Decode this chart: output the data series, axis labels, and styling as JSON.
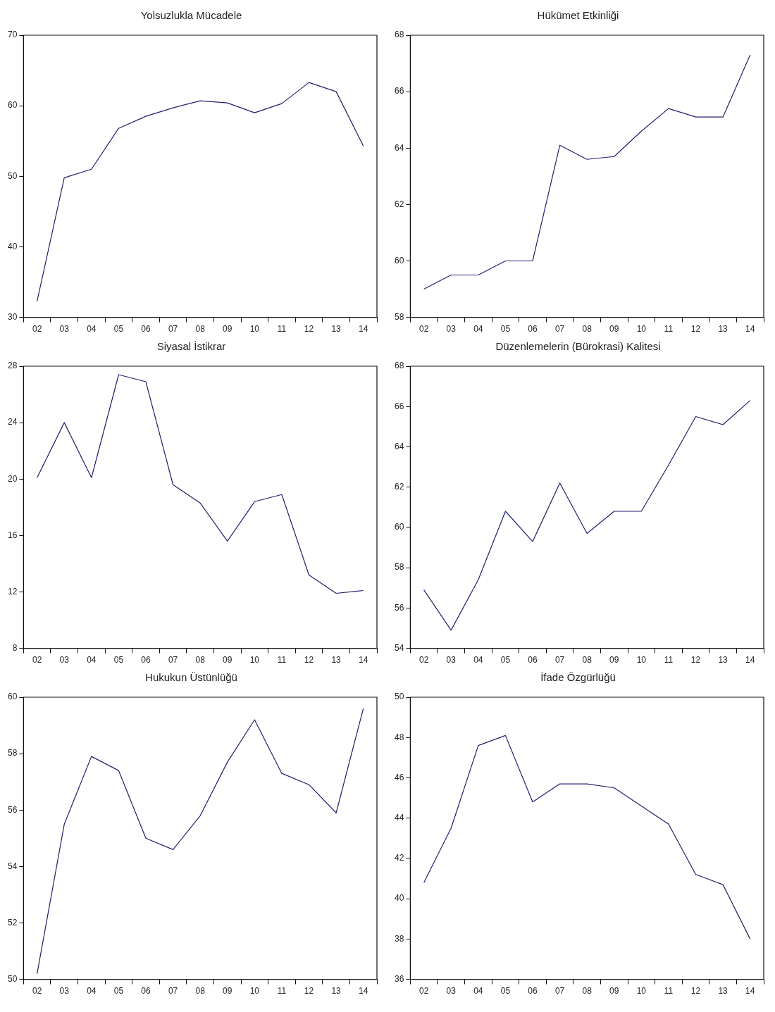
{
  "chart_data": [
    {
      "type": "line",
      "title": "Yolsuzlukla Mücadele",
      "categories": [
        "02",
        "03",
        "04",
        "05",
        "06",
        "07",
        "08",
        "09",
        "10",
        "11",
        "12",
        "13",
        "14"
      ],
      "values": [
        32.3,
        49.8,
        51.0,
        56.8,
        58.5,
        59.7,
        60.7,
        60.4,
        59.0,
        60.3,
        63.3,
        62.0,
        54.3
      ],
      "color": "#1f1f6e",
      "ylim": [
        30,
        70
      ],
      "yticks": [
        30,
        40,
        50,
        60,
        70
      ],
      "grid": false,
      "legend": false
    },
    {
      "type": "line",
      "title": "Hükümet Etkinliği",
      "categories": [
        "02",
        "03",
        "04",
        "05",
        "06",
        "07",
        "08",
        "09",
        "10",
        "11",
        "12",
        "13",
        "14"
      ],
      "values": [
        59.0,
        59.5,
        59.5,
        60.0,
        60.0,
        64.1,
        63.6,
        63.7,
        64.6,
        65.4,
        65.1,
        65.1,
        67.3
      ],
      "color": "#1f1f6e",
      "ylim": [
        58,
        68
      ],
      "yticks": [
        58,
        60,
        62,
        64,
        66,
        68
      ],
      "grid": false,
      "legend": false
    },
    {
      "type": "line",
      "title": "Siyasal İstikrar",
      "categories": [
        "02",
        "03",
        "04",
        "05",
        "06",
        "07",
        "08",
        "09",
        "10",
        "11",
        "12",
        "13",
        "14"
      ],
      "values": [
        20.1,
        24.0,
        20.1,
        27.4,
        26.9,
        19.6,
        18.3,
        15.6,
        18.4,
        18.9,
        13.2,
        11.9,
        12.1
      ],
      "color": "#1f1f6e",
      "ylim": [
        8,
        28
      ],
      "yticks": [
        8,
        12,
        16,
        20,
        24,
        28
      ],
      "grid": false,
      "legend": false
    },
    {
      "type": "line",
      "title": "Düzenlemelerin (Bürokrasi) Kalitesi",
      "categories": [
        "02",
        "03",
        "04",
        "05",
        "06",
        "07",
        "08",
        "09",
        "10",
        "11",
        "12",
        "13",
        "14"
      ],
      "values": [
        56.9,
        54.9,
        57.4,
        60.8,
        59.3,
        62.2,
        59.7,
        60.8,
        60.8,
        63.1,
        65.5,
        65.1,
        66.3
      ],
      "color": "#1f1f6e",
      "ylim": [
        54,
        68
      ],
      "yticks": [
        54,
        56,
        58,
        60,
        62,
        64,
        66,
        68
      ],
      "grid": false,
      "legend": false
    },
    {
      "type": "line",
      "title": "Hukukun Üstünlüğü",
      "categories": [
        "02",
        "03",
        "04",
        "05",
        "06",
        "07",
        "08",
        "09",
        "10",
        "11",
        "12",
        "13",
        "14"
      ],
      "values": [
        50.2,
        55.5,
        57.9,
        57.4,
        55.0,
        54.6,
        55.8,
        57.7,
        59.2,
        57.3,
        56.9,
        55.9,
        59.6
      ],
      "color": "#1f1f6e",
      "ylim": [
        50,
        60
      ],
      "yticks": [
        50,
        52,
        54,
        56,
        58,
        60
      ],
      "grid": false,
      "legend": false
    },
    {
      "type": "line",
      "title": "İfade Özgürlüğü",
      "categories": [
        "02",
        "03",
        "04",
        "05",
        "06",
        "07",
        "08",
        "09",
        "10",
        "11",
        "12",
        "13",
        "14"
      ],
      "values": [
        40.8,
        43.5,
        47.6,
        48.1,
        44.8,
        45.7,
        45.7,
        45.5,
        44.6,
        43.7,
        41.2,
        40.7,
        38.0
      ],
      "color": "#1f1f6e",
      "ylim": [
        36,
        50
      ],
      "yticks": [
        36,
        38,
        40,
        42,
        44,
        46,
        48,
        50
      ],
      "grid": false,
      "legend": false
    }
  ]
}
